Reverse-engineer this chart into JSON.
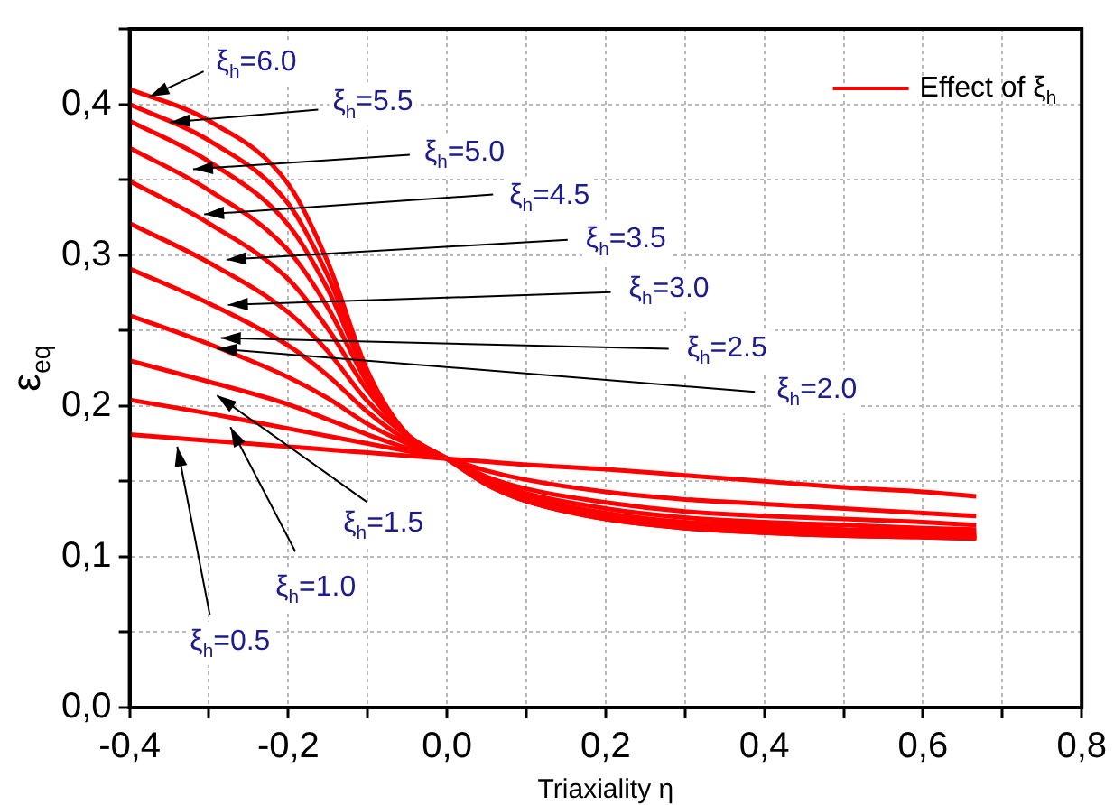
{
  "chart_data": {
    "type": "line",
    "xlabel": "Triaxiality η",
    "ylabel": "ε$_{eq}$",
    "x": [
      -0.4,
      -0.3,
      -0.2,
      -0.15,
      -0.1,
      -0.05,
      0,
      0.05,
      0.1,
      0.2,
      0.3,
      0.4,
      0.5,
      0.6,
      0.667
    ],
    "series": [
      {
        "name": "Effect of ξ$_{h}$",
        "color": "#ff0000",
        "values": [
          0.181,
          0.177,
          0.173,
          0.171,
          0.169,
          0.167,
          0.165,
          0.163,
          0.161,
          0.158,
          0.154,
          0.15,
          0.146,
          0.143,
          0.14
        ]
      },
      {
        "color": "#ff0000",
        "values": [
          0.204,
          0.195,
          0.185,
          0.18,
          0.175,
          0.17,
          0.165,
          0.157,
          0.151,
          0.143,
          0.138,
          0.135,
          0.132,
          0.129,
          0.127
        ]
      },
      {
        "color": "#ff0000",
        "values": [
          0.23,
          0.216,
          0.201,
          0.191,
          0.181,
          0.172,
          0.165,
          0.153,
          0.145,
          0.136,
          0.13,
          0.127,
          0.125,
          0.123,
          0.121
        ]
      },
      {
        "color": "#ff0000",
        "values": [
          0.26,
          0.241,
          0.219,
          0.205,
          0.188,
          0.175,
          0.165,
          0.151,
          0.142,
          0.132,
          0.126,
          0.123,
          0.121,
          0.119,
          0.118
        ]
      },
      {
        "color": "#ff0000",
        "values": [
          0.291,
          0.268,
          0.24,
          0.22,
          0.196,
          0.177,
          0.165,
          0.15,
          0.14,
          0.129,
          0.123,
          0.121,
          0.118,
          0.117,
          0.116
        ]
      },
      {
        "color": "#ff0000",
        "values": [
          0.321,
          0.295,
          0.262,
          0.236,
          0.203,
          0.18,
          0.165,
          0.149,
          0.139,
          0.128,
          0.122,
          0.119,
          0.117,
          0.116,
          0.115
        ]
      },
      {
        "color": "#ff0000",
        "values": [
          0.349,
          0.321,
          0.284,
          0.251,
          0.21,
          0.181,
          0.165,
          0.149,
          0.138,
          0.127,
          0.121,
          0.118,
          0.116,
          0.115,
          0.114
        ]
      },
      {
        "color": "#ff0000",
        "values": [
          0.371,
          0.343,
          0.303,
          0.265,
          0.215,
          0.181,
          0.165,
          0.148,
          0.137,
          0.126,
          0.12,
          0.117,
          0.115,
          0.114,
          0.113
        ]
      },
      {
        "color": "#ff0000",
        "values": [
          0.389,
          0.362,
          0.32,
          0.277,
          0.219,
          0.181,
          0.165,
          0.148,
          0.137,
          0.126,
          0.12,
          0.117,
          0.115,
          0.114,
          0.113
        ]
      },
      {
        "color": "#ff0000",
        "values": [
          0.4,
          0.376,
          0.334,
          0.286,
          0.221,
          0.181,
          0.165,
          0.148,
          0.137,
          0.125,
          0.119,
          0.116,
          0.114,
          0.113,
          0.112
        ]
      },
      {
        "color": "#ff0000",
        "values": [
          0.41,
          0.389,
          0.347,
          0.295,
          0.223,
          0.181,
          0.165,
          0.148,
          0.137,
          0.125,
          0.119,
          0.116,
          0.114,
          0.113,
          0.112
        ]
      }
    ],
    "annotations": [
      {
        "text": "ξ$_{h}$=6.0",
        "x": -0.375,
        "y": 0.405
      },
      {
        "text": "ξ$_{h}$=5.5",
        "x": -0.349,
        "y": 0.388
      },
      {
        "text": "ξ$_{h}$=5.0",
        "x": -0.32,
        "y": 0.357
      },
      {
        "text": "ξ$_{h}$=4.5",
        "x": -0.306,
        "y": 0.327
      },
      {
        "text": "ξ$_{h}$=3.5",
        "x": -0.278,
        "y": 0.297
      },
      {
        "text": "ξ$_{h}$=3.0",
        "x": -0.276,
        "y": 0.267
      },
      {
        "text": "ξ$_{h}$=2.5",
        "x": -0.285,
        "y": 0.245
      },
      {
        "text": "ξ$_{h}$=2.0",
        "x": -0.29,
        "y": 0.238
      },
      {
        "text": "ξ$_{h}$=1.5",
        "x": -0.29,
        "y": 0.207
      },
      {
        "text": "ξ$_{h}$=1.0",
        "x": -0.273,
        "y": 0.186
      },
      {
        "text": "ξ$_{h}$=0.5",
        "x": -0.34,
        "y": 0.173
      }
    ],
    "xlim": [
      -0.4,
      0.8
    ],
    "xticks": [
      {
        "value": -0.4,
        "label": "-0,4"
      },
      {
        "value": -0.3,
        "label": null
      },
      {
        "value": -0.2,
        "label": "-0,2"
      },
      {
        "value": -0.1,
        "label": null
      },
      {
        "value": 0,
        "label": "0,0"
      },
      {
        "value": 0.1,
        "label": null
      },
      {
        "value": 0.2,
        "label": "0,2"
      },
      {
        "value": 0.3,
        "label": null
      },
      {
        "value": 0.4,
        "label": "0,4"
      },
      {
        "value": 0.5,
        "label": null
      },
      {
        "value": 0.6,
        "label": "0,6"
      },
      {
        "value": 0.7,
        "label": null
      },
      {
        "value": 0.8,
        "label": "0,8"
      }
    ],
    "ylim": [
      0,
      0.45
    ],
    "yticks": [
      {
        "value": 0,
        "label": "0,0"
      },
      {
        "value": 0.05,
        "label": null
      },
      {
        "value": 0.1,
        "label": "0,1"
      },
      {
        "value": 0.15,
        "label": null
      },
      {
        "value": 0.2,
        "label": "0,2"
      },
      {
        "value": 0.25,
        "label": null
      },
      {
        "value": 0.3,
        "label": "0,3"
      },
      {
        "value": 0.35,
        "label": null
      },
      {
        "value": 0.4,
        "label": "0,4"
      },
      {
        "value": 0.45,
        "label": null
      }
    ],
    "grid": true,
    "legend": "top right",
    "marker": "none"
  }
}
